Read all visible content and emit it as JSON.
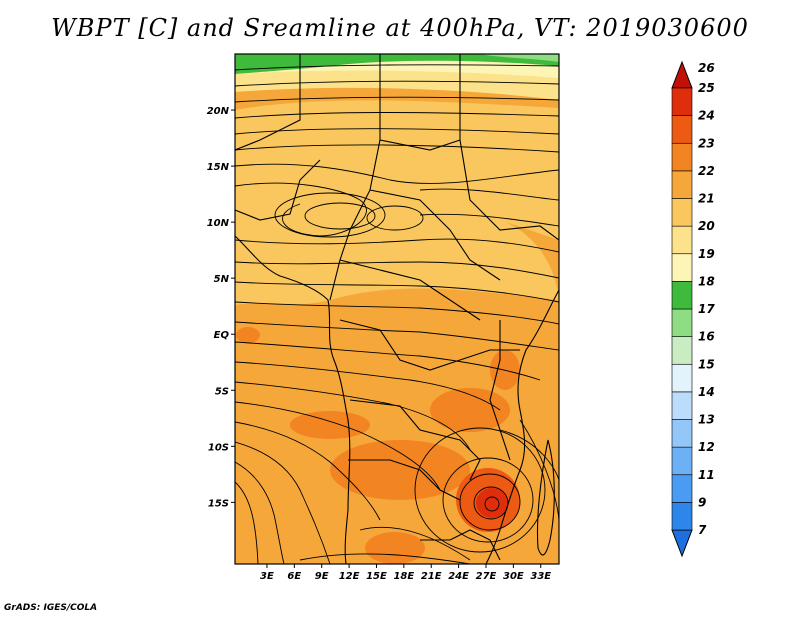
{
  "title": "WBPT [C] and Sreamline at 400hPa, VT: 2019030600",
  "credit": "GrADS: IGES/COLA",
  "map": {
    "lat_range": [
      -20.5,
      25
    ],
    "lon_range": [
      -0.5,
      35
    ],
    "lat_ticks": [
      {
        "value": 20,
        "label": "20N"
      },
      {
        "value": 15,
        "label": "15N"
      },
      {
        "value": 10,
        "label": "10N"
      },
      {
        "value": 5,
        "label": "5N"
      },
      {
        "value": 0,
        "label": "EQ"
      },
      {
        "value": -5,
        "label": "5S"
      },
      {
        "value": -10,
        "label": "10S"
      },
      {
        "value": -15,
        "label": "15S"
      }
    ],
    "lon_ticks": [
      {
        "value": 3,
        "label": "3E"
      },
      {
        "value": 6,
        "label": "6E"
      },
      {
        "value": 9,
        "label": "9E"
      },
      {
        "value": 12,
        "label": "12E"
      },
      {
        "value": 15,
        "label": "15E"
      },
      {
        "value": 18,
        "label": "18E"
      },
      {
        "value": 21,
        "label": "21E"
      },
      {
        "value": 24,
        "label": "24E"
      },
      {
        "value": 27,
        "label": "27E"
      },
      {
        "value": 30,
        "label": "30E"
      },
      {
        "value": 33,
        "label": "33E"
      }
    ]
  },
  "colorbar": {
    "levels": [
      "7",
      "9",
      "11",
      "12",
      "13",
      "14",
      "15",
      "16",
      "17",
      "18",
      "19",
      "20",
      "21",
      "22",
      "23",
      "24",
      "25",
      "26"
    ],
    "colors": [
      "#1e6fe0",
      "#2f86ea",
      "#4a9bf2",
      "#6cb0f5",
      "#93c7f8",
      "#bcdcfb",
      "#e2f3fb",
      "#c9ecc3",
      "#8edc84",
      "#3fba3c",
      "#fdf5b5",
      "#fce28a",
      "#f9c75e",
      "#f6a73a",
      "#f28422",
      "#ec5a13",
      "#df2e0c",
      "#c11006"
    ]
  }
}
